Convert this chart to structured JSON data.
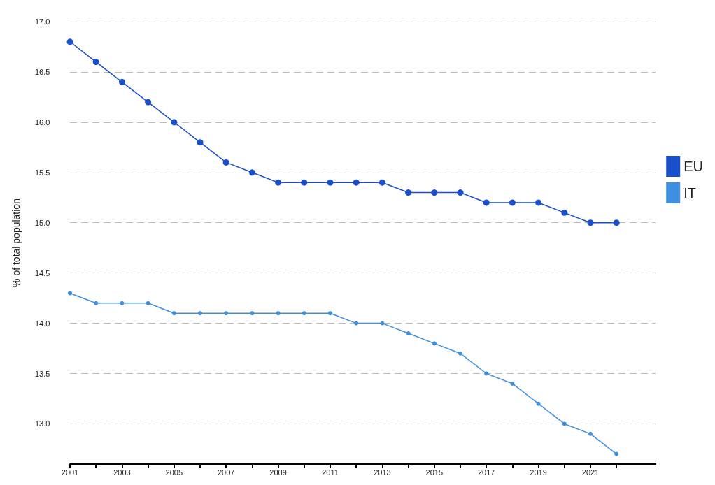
{
  "chart_data": {
    "type": "line",
    "ylabel": "% of total population",
    "x": [
      2001,
      2002,
      2003,
      2004,
      2005,
      2006,
      2007,
      2008,
      2009,
      2010,
      2011,
      2012,
      2013,
      2014,
      2015,
      2016,
      2017,
      2018,
      2019,
      2020,
      2021,
      2022
    ],
    "series": [
      {
        "name": "EU",
        "color": "#1a4fcc",
        "values": [
          16.8,
          16.6,
          16.4,
          16.2,
          16.0,
          15.8,
          15.6,
          15.5,
          15.4,
          15.4,
          15.4,
          15.4,
          15.4,
          15.3,
          15.3,
          15.3,
          15.2,
          15.2,
          15.2,
          15.1,
          15.0,
          15.0
        ]
      },
      {
        "name": "IT",
        "color": "#3f8fe0",
        "values": [
          14.3,
          14.2,
          14.2,
          14.2,
          14.1,
          14.1,
          14.1,
          14.1,
          14.1,
          14.1,
          14.1,
          14.0,
          14.0,
          13.9,
          13.8,
          13.7,
          13.5,
          13.4,
          13.2,
          13.0,
          12.9,
          12.7
        ]
      }
    ],
    "xlim": [
      2001,
      2023.5
    ],
    "xticks": [
      2001,
      {
        "value": 2002,
        "label": null
      },
      2003,
      {
        "value": 2004,
        "label": null
      },
      2005,
      {
        "value": 2006,
        "label": null
      },
      2007,
      {
        "value": 2008,
        "label": null
      },
      2009,
      {
        "value": 2010,
        "label": null
      },
      2011,
      {
        "value": 2012,
        "label": null
      },
      2013,
      {
        "value": 2014,
        "label": null
      },
      2015,
      {
        "value": 2016,
        "label": null
      },
      2017,
      {
        "value": 2018,
        "label": null
      },
      2019,
      {
        "value": 2020,
        "label": null
      },
      2021,
      {
        "value": 2022,
        "label": null
      }
    ],
    "ylim": [
      12.6,
      17.0
    ],
    "yticks": [
      {
        "value": 13,
        "label": "13.0"
      },
      {
        "value": 13.5,
        "label": "13.5"
      },
      {
        "value": 14,
        "label": "14.0"
      },
      {
        "value": 14.5,
        "label": "14.5"
      },
      {
        "value": 15,
        "label": "15.0"
      },
      {
        "value": 15.5,
        "label": "15.5"
      },
      {
        "value": 16,
        "label": "16.0"
      },
      {
        "value": 16.5,
        "label": "16.5"
      },
      {
        "value": 17,
        "label": "17.0"
      }
    ],
    "grid": "y",
    "legend": "right",
    "marker": "circle",
    "line_style": "solid"
  }
}
